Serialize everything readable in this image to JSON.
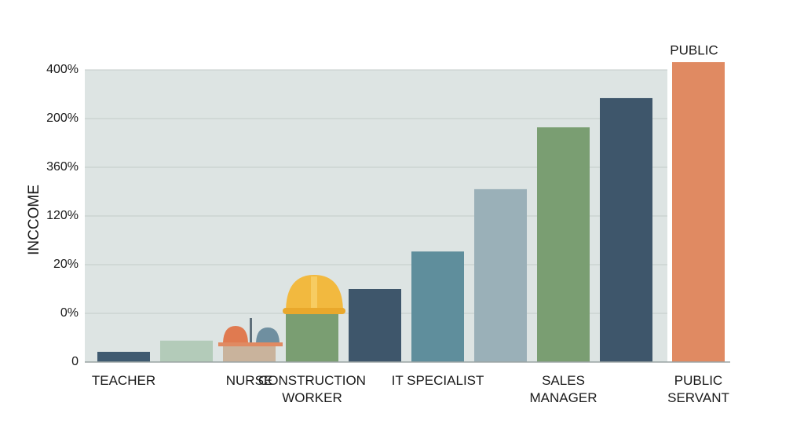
{
  "chart_data": {
    "type": "bar",
    "y_label": "INCCOME",
    "annotation": "PUBLIC",
    "categories": [
      "TEACHER",
      null,
      "NURSE",
      "CONSTRUCTION\nWORKER",
      null,
      "IT SPECIALIST",
      null,
      "SALES\nMANAGER",
      null,
      "PUBLIC\nSERVANT"
    ],
    "values": [
      0.21,
      0.44,
      0.37,
      1.1,
      1.5,
      2.27,
      3.55,
      4.82,
      5.42,
      6.16
    ],
    "colors": [
      "#3f5a70",
      "#b3cbb9",
      "#c9b39c",
      "#7a9e72",
      "#3e566b",
      "#5f8e9c",
      "#9ab0b8",
      "#7a9e72",
      "#3e566b",
      "#e08a62"
    ],
    "ylim": [
      0,
      6
    ],
    "yticks": [
      0,
      {
        "value": 1,
        "label": "0%"
      },
      {
        "value": 2,
        "label": "20%"
      },
      {
        "value": 3,
        "label": "120%"
      },
      {
        "value": 4,
        "label": "360%"
      },
      {
        "value": 5,
        "label": "200%"
      },
      {
        "value": 6,
        "label": "400%"
      }
    ],
    "grid": true
  }
}
